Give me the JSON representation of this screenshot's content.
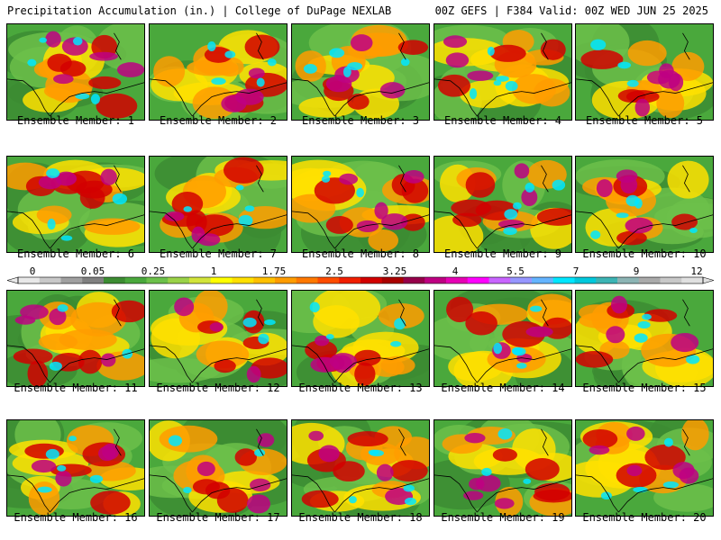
{
  "header": {
    "left": "Precipitation Accumulation (in.) | College of DuPage NEXLAB",
    "right": "00Z GEFS | F384 Valid: 00Z WED JUN 25 2025"
  },
  "legend": {
    "tick_labels": [
      "0",
      "0.05",
      "0.25",
      "1",
      "1.75",
      "2.5",
      "3.25",
      "4",
      "5.5",
      "7",
      "9",
      "12"
    ],
    "colors": [
      "#e8e8e8",
      "#c8c8c8",
      "#a0a0a0",
      "#808080",
      "#3c8c32",
      "#4aa83c",
      "#6cc04a",
      "#9ad248",
      "#d2e43a",
      "#ffff00",
      "#ffe000",
      "#ffc000",
      "#ff9c00",
      "#ff7800",
      "#ff4c00",
      "#f01e00",
      "#d20000",
      "#aa0000",
      "#96004a",
      "#be0082",
      "#e600b4",
      "#ff00ff",
      "#c864ff",
      "#9696ff",
      "#64b4ff",
      "#00e6ff",
      "#00c8dc",
      "#3cb4b4",
      "#8cb4b4",
      "#aaaaaa",
      "#c8c8c8",
      "#e0e0e0"
    ]
  },
  "panels": [
    {
      "caption": "Ensemble Member: 1"
    },
    {
      "caption": "Ensemble Member: 2"
    },
    {
      "caption": "Ensemble Member: 3"
    },
    {
      "caption": "Ensemble Member: 4"
    },
    {
      "caption": "Ensemble Member: 5"
    },
    {
      "caption": "Ensemble Member: 6"
    },
    {
      "caption": "Ensemble Member: 7"
    },
    {
      "caption": "Ensemble Member: 8"
    },
    {
      "caption": "Ensemble Member: 9"
    },
    {
      "caption": "Ensemble Member: 10"
    },
    {
      "caption": "Ensemble Member: 11"
    },
    {
      "caption": "Ensemble Member: 12"
    },
    {
      "caption": "Ensemble Member: 13"
    },
    {
      "caption": "Ensemble Member: 14"
    },
    {
      "caption": "Ensemble Member: 15"
    },
    {
      "caption": "Ensemble Member: 16"
    },
    {
      "caption": "Ensemble Member: 17"
    },
    {
      "caption": "Ensemble Member: 18"
    },
    {
      "caption": "Ensemble Member: 19"
    },
    {
      "caption": "Ensemble Member: 20"
    }
  ]
}
